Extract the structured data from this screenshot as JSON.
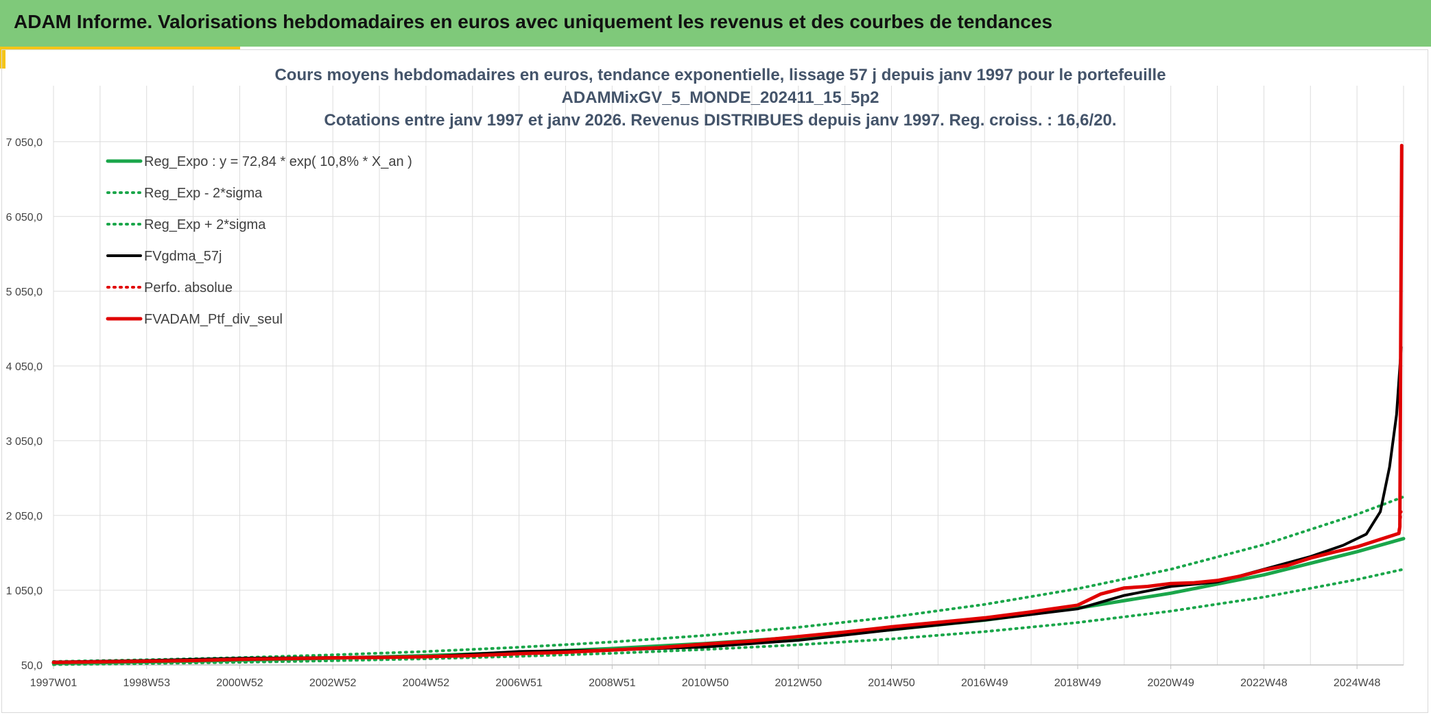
{
  "header": {
    "title": "ADAM Informe. Valorisations hebdomadaires en euros avec uniquement les revenus et des courbes de tendances"
  },
  "colors": {
    "header_bg": "#7fc97a",
    "accent": "#f5c518",
    "reg_green": "#1aa64a",
    "black": "#000000",
    "red": "#e00000"
  },
  "chart_data": {
    "type": "line",
    "title_lines": [
      "Cours moyens hebdomadaires en euros, tendance exponentielle, lissage 57 j depuis janv 1997 pour le portefeuille",
      "ADAMMixGV_5_MONDE_202411_15_5p2",
      "Cotations entre janv 1997 et janv 2026. Revenus DISTRIBUES depuis janv 1997. Reg. croiss. : 16,6/20."
    ],
    "x_ticks": [
      "1997W01",
      "1998W53",
      "2000W52",
      "2002W52",
      "2004W52",
      "2006W51",
      "2008W51",
      "2010W50",
      "2012W50",
      "2014W50",
      "2016W49",
      "2018W49",
      "2020W49",
      "2022W48",
      "2024W48"
    ],
    "x_tick_years": [
      1997.0,
      1999.0,
      2001.0,
      2003.0,
      2005.0,
      2007.0,
      2009.0,
      2011.0,
      2013.0,
      2015.0,
      2017.0,
      2019.0,
      2021.0,
      2023.0,
      2025.0
    ],
    "xlim": [
      1997.0,
      2026.0
    ],
    "y_ticks": [
      "50,0",
      "1 050,0",
      "2 050,0",
      "3 050,0",
      "4 050,0",
      "5 050,0",
      "6 050,0",
      "7 050,0"
    ],
    "y_tick_values": [
      50,
      1050,
      2050,
      3050,
      4050,
      5050,
      6050,
      7050
    ],
    "ylim": [
      50,
      7800
    ],
    "grid": true,
    "legend_position": "top-left",
    "series": [
      {
        "name": "Reg_Expo : y = 72,84 * exp( 10,8% *  X_an )",
        "style": "solid",
        "color": "#1aa64a",
        "width": 5,
        "x": [
          1997,
          1999,
          2001,
          2003,
          2005,
          2007,
          2009,
          2011,
          2013,
          2015,
          2017,
          2019,
          2021,
          2023,
          2025,
          2026
        ],
        "y": [
          73,
          90,
          113,
          140,
          175,
          217,
          270,
          337,
          420,
          522,
          650,
          810,
          1010,
          1255,
          1565,
          1740
        ]
      },
      {
        "name": "Reg_Exp - 2*sigma",
        "style": "dotted",
        "color": "#1aa64a",
        "width": 4,
        "x": [
          1997,
          1999,
          2001,
          2003,
          2005,
          2007,
          2009,
          2011,
          2013,
          2015,
          2017,
          2019,
          2021,
          2023,
          2025,
          2026
        ],
        "y": [
          55,
          69,
          86,
          107,
          133,
          166,
          206,
          257,
          320,
          398,
          496,
          618,
          770,
          958,
          1193,
          1330
        ]
      },
      {
        "name": "Reg_Exp + 2*sigma",
        "style": "dotted",
        "color": "#1aa64a",
        "width": 4,
        "x": [
          1997,
          1999,
          2001,
          2003,
          2005,
          2007,
          2009,
          2011,
          2013,
          2015,
          2017,
          2019,
          2021,
          2023,
          2025,
          2026
        ],
        "y": [
          96,
          119,
          148,
          185,
          230,
          287,
          357,
          445,
          554,
          690,
          860,
          1070,
          1330,
          1660,
          2065,
          2300
        ]
      },
      {
        "name": "FVgdma_57j",
        "style": "solid",
        "color": "#000000",
        "width": 4,
        "x": [
          1997,
          1999,
          2001,
          2003,
          2005,
          2007,
          2009,
          2011,
          2013,
          2015,
          2017,
          2019,
          2020,
          2021,
          2022,
          2023,
          2024,
          2024.7,
          2025.2,
          2025.5,
          2025.7,
          2025.85,
          2025.95
        ],
        "y": [
          90,
          110,
          140,
          150,
          160,
          230,
          250,
          290,
          380,
          520,
          650,
          800,
          980,
          1100,
          1160,
          1330,
          1500,
          1650,
          1800,
          2100,
          2700,
          3400,
          4300
        ]
      },
      {
        "name": "Perfo. absolue",
        "style": "dotted",
        "color": "#e00000",
        "width": 4,
        "x": [
          2025.9,
          2025.95
        ],
        "y": [
          1850,
          2100
        ]
      },
      {
        "name": "FVADAM_Ptf_div_seul",
        "style": "solid",
        "color": "#e00000",
        "width": 5,
        "x": [
          1997,
          1998,
          1999,
          2000,
          2001,
          2002,
          2003,
          2004,
          2005,
          2006,
          2007,
          2008,
          2009,
          2010,
          2011,
          2012,
          2013,
          2014,
          2015,
          2016,
          2017,
          2018,
          2019,
          2019.5,
          2020,
          2020.5,
          2021,
          2021.5,
          2022,
          2022.5,
          2023,
          2023.5,
          2024,
          2024.5,
          2025,
          2025.5,
          2025.9,
          2025.92,
          2025.94,
          2025.96
        ],
        "y": [
          85,
          92,
          100,
          110,
          125,
          135,
          145,
          150,
          160,
          175,
          200,
          220,
          250,
          280,
          330,
          370,
          430,
          490,
          560,
          620,
          680,
          760,
          850,
          1000,
          1080,
          1100,
          1140,
          1150,
          1180,
          1240,
          1320,
          1380,
          1480,
          1560,
          1630,
          1730,
          1810,
          1900,
          4500,
          7000
        ]
      }
    ]
  }
}
